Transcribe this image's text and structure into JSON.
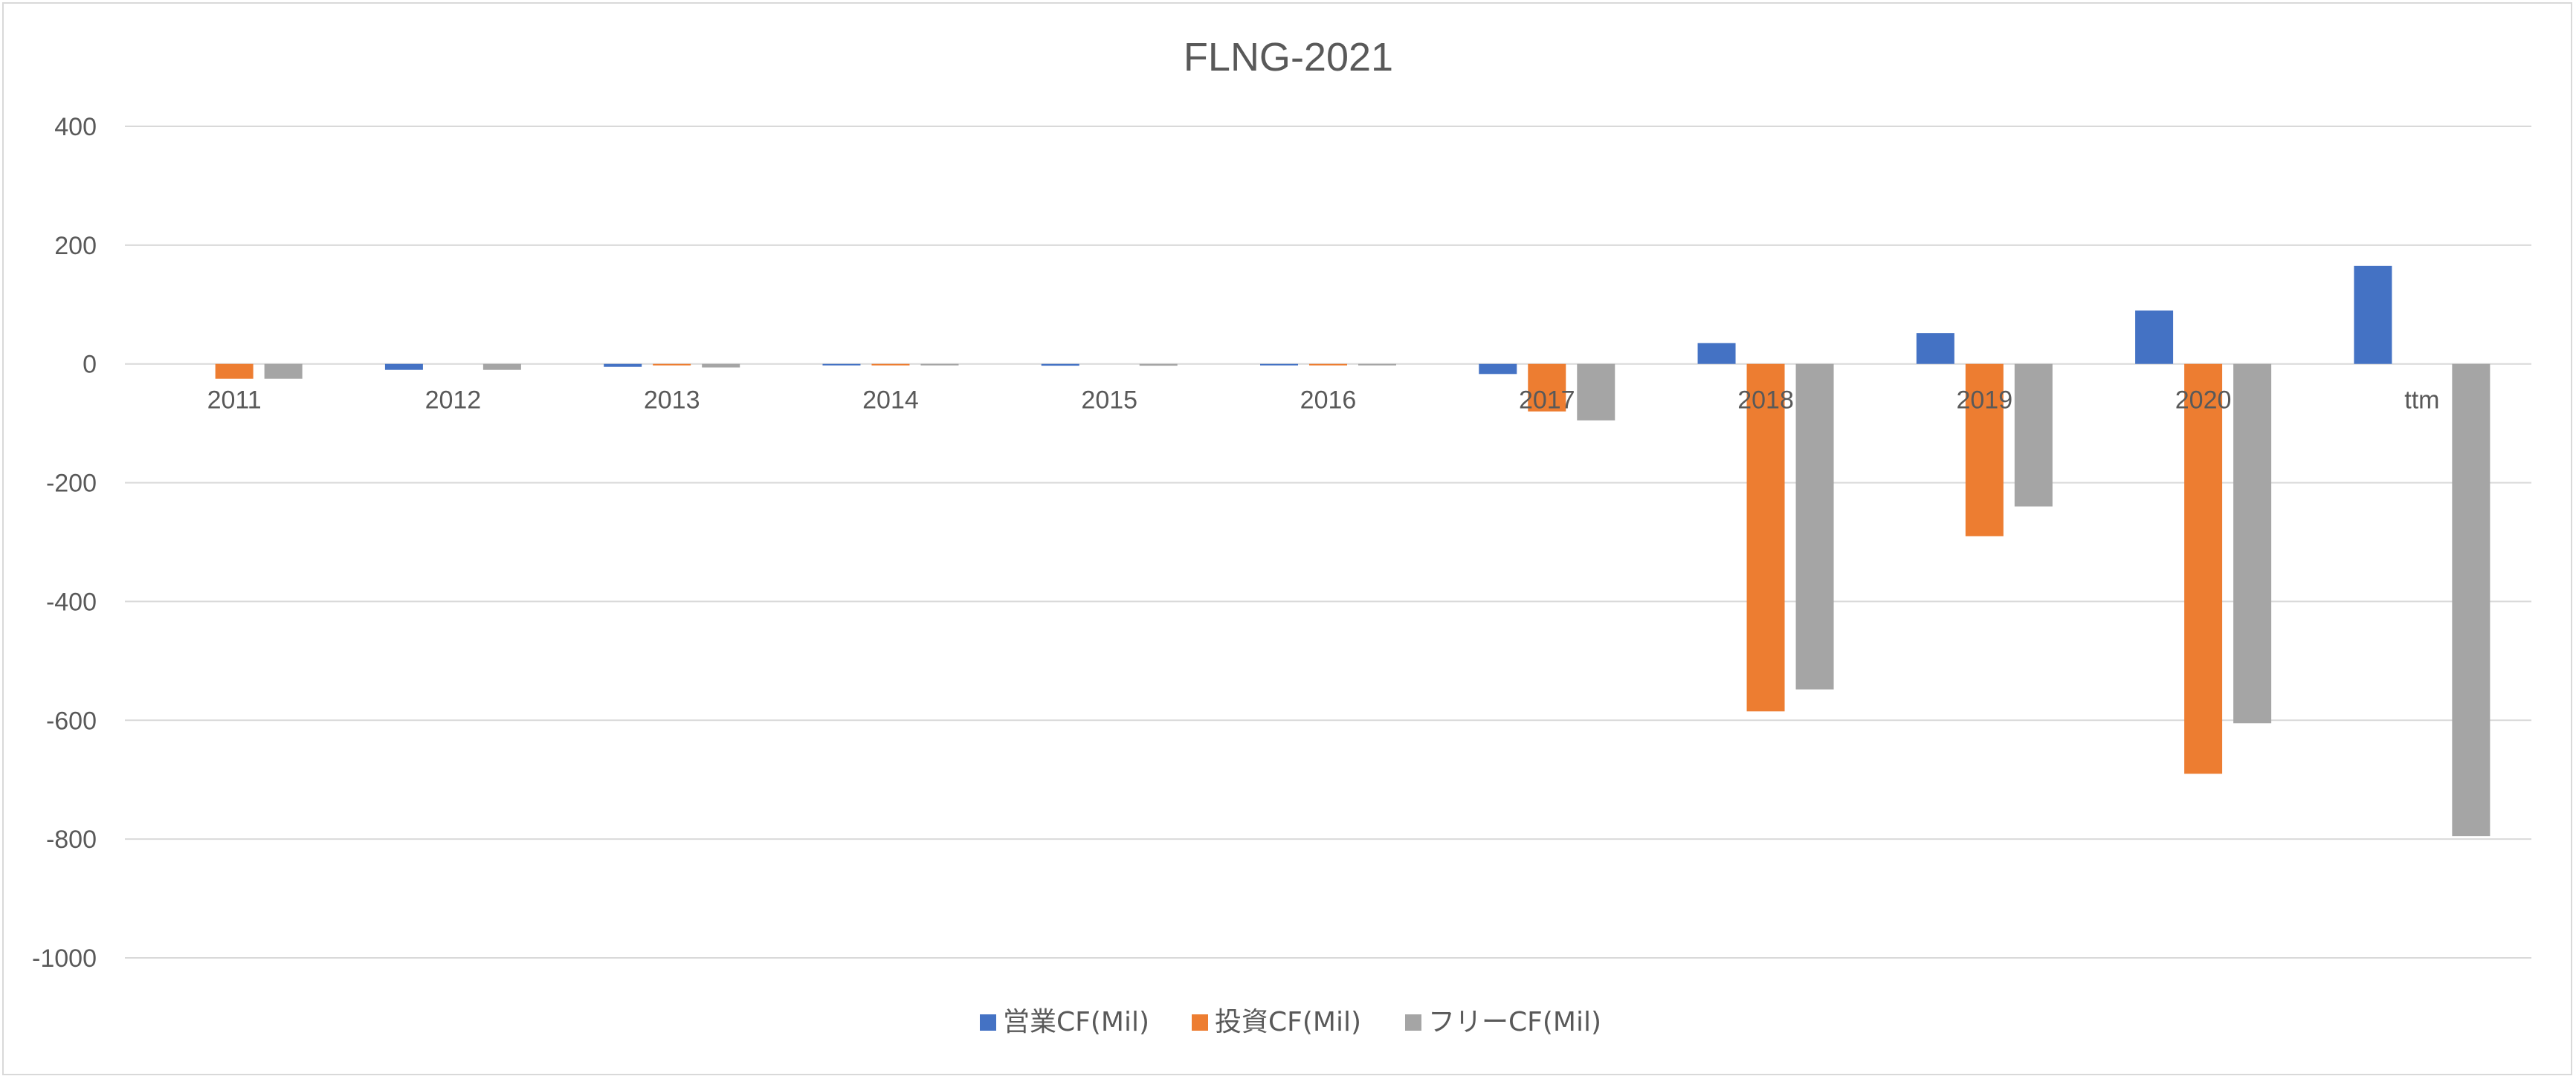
{
  "chart_data": {
    "type": "bar",
    "title": "FLNG-2021",
    "categories": [
      "2011",
      "2012",
      "2013",
      "2014",
      "2015",
      "2016",
      "2017",
      "2018",
      "2019",
      "2020",
      "ttm"
    ],
    "series": [
      {
        "name": "営業CF(Mil)",
        "color": "#4472c4",
        "values": [
          0,
          -10,
          -5,
          -2,
          -3,
          -2,
          -17,
          35,
          52,
          90,
          165
        ]
      },
      {
        "name": "投資CF(Mil)",
        "color": "#ed7d31",
        "values": [
          -25,
          0,
          -2,
          -2,
          0,
          -2,
          -80,
          -585,
          -290,
          -690,
          0
        ]
      },
      {
        "name": "フリーCF(Mil)",
        "color": "#a5a5a5",
        "values": [
          -25,
          -10,
          -6,
          -2,
          -3,
          -2,
          -95,
          -548,
          -240,
          -605,
          -795
        ]
      }
    ],
    "yticks": [
      400,
      200,
      0,
      -200,
      -400,
      -600,
      -800,
      -1000
    ],
    "ylim": [
      -1000,
      400
    ],
    "grid": true,
    "legend_position": "bottom"
  }
}
